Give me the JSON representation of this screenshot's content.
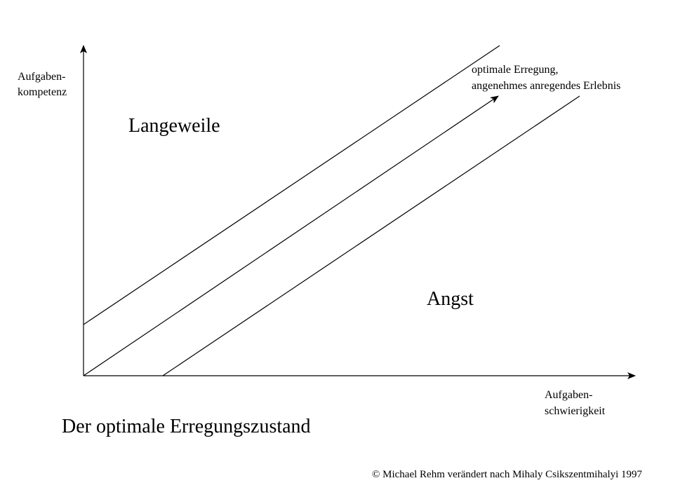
{
  "title": "Der optimale Erregungszustand",
  "y_axis": {
    "label": [
      "Aufgaben-",
      "kompetenz"
    ]
  },
  "x_axis": {
    "label": [
      "Aufgaben-",
      "schwierigkeit"
    ]
  },
  "regions": {
    "upper": "Langeweile",
    "lower": "Angst"
  },
  "channel": {
    "label": [
      "optimale Erregung,",
      "angenehmes anregendes Erlebnis"
    ]
  },
  "credit": "© Michael Rehm verändert nach Mihaly Csikszentmihalyi 1997"
}
